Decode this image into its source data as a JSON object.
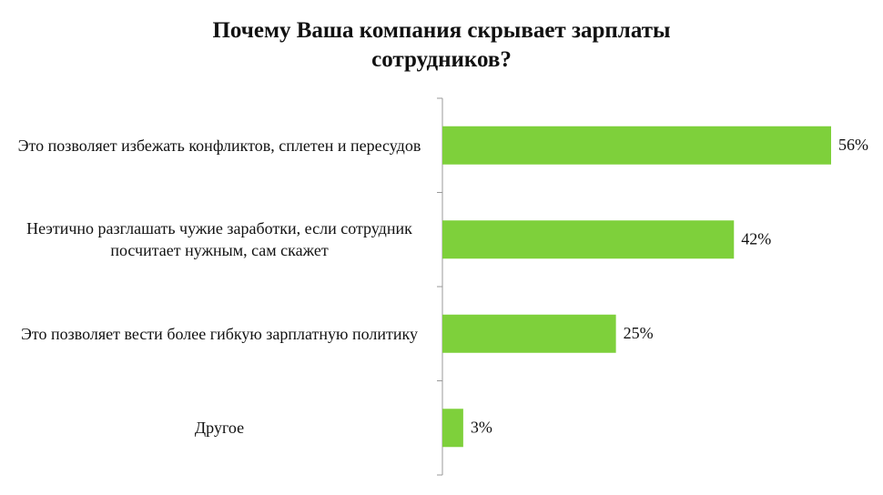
{
  "chart_data": {
    "type": "bar",
    "orientation": "horizontal",
    "title": "Почему Ваша компания скрывает зарплаты сотрудников?",
    "categories": [
      "Это позволяет избежать конфликтов, сплетен и пересудов",
      "Неэтично разглашать чужие заработки, если сотрудник посчитает нужным, сам скажет",
      "Это позволяет вести более гибкую зарплатную политику",
      "Другое"
    ],
    "values": [
      56,
      42,
      25,
      3
    ],
    "value_labels": [
      "56%",
      "42%",
      "25%",
      "3%"
    ],
    "color": "#7ed03b"
  }
}
